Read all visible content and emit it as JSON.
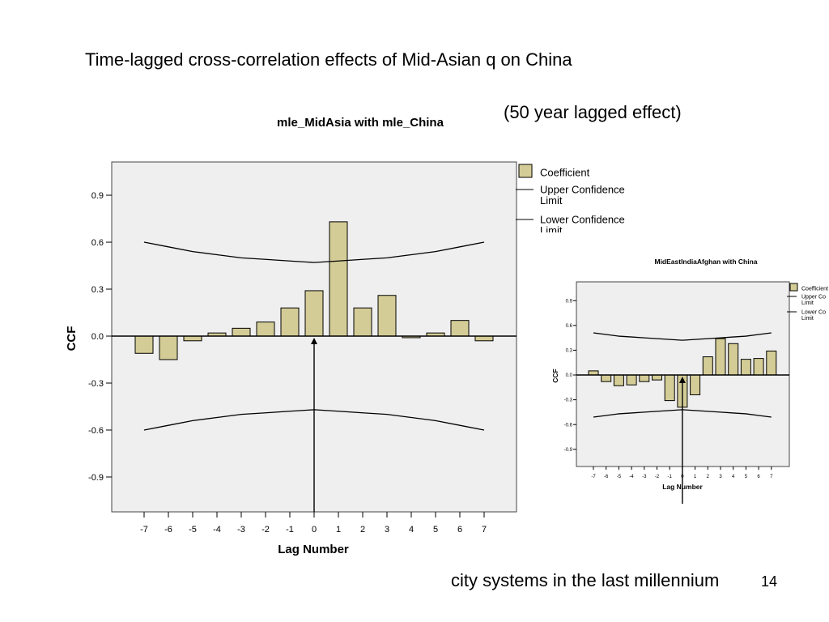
{
  "slide": {
    "title": "Time-lagged cross-correlation effects of Mid-Asian q on China",
    "lag_note": "(50 year lagged effect)",
    "footer": "city systems in the last millennium",
    "page_number": "14"
  },
  "colors": {
    "bar_fill": "#d4cc96",
    "plot_bg": "#efefef",
    "line": "#000000"
  },
  "chart_data": [
    {
      "type": "bar",
      "title": "mle_MidAsia with mle_China",
      "xlabel": "Lag Number",
      "ylabel": "CCF",
      "categories": [
        "-7",
        "-6",
        "-5",
        "-4",
        "-3",
        "-2",
        "-1",
        "0",
        "1",
        "2",
        "3",
        "4",
        "5",
        "6",
        "7"
      ],
      "series": [
        {
          "name": "Coefficient",
          "values": [
            -0.11,
            -0.15,
            -0.03,
            0.02,
            0.05,
            0.09,
            0.18,
            0.29,
            0.73,
            0.18,
            0.26,
            -0.01,
            0.02,
            0.1,
            -0.03
          ]
        },
        {
          "name": "Upper Confidence Limit",
          "values": [
            0.6,
            0.57,
            0.54,
            0.52,
            0.5,
            0.49,
            0.48,
            0.47,
            0.48,
            0.49,
            0.5,
            0.52,
            0.54,
            0.57,
            0.6
          ]
        },
        {
          "name": "Lower Confidence Limit",
          "values": [
            -0.6,
            -0.57,
            -0.54,
            -0.52,
            -0.5,
            -0.49,
            -0.48,
            -0.47,
            -0.48,
            -0.49,
            -0.5,
            -0.52,
            -0.54,
            -0.57,
            -0.6
          ]
        }
      ],
      "legend": [
        "Coefficient",
        "Upper Confidence Limit",
        "Lower Confidence Limit"
      ],
      "y_ticks": [
        "0.9",
        "0.6",
        "0.3",
        "0.0",
        "-0.3",
        "-0.6",
        "-0.9"
      ],
      "ylim": [
        -1.1,
        1.1
      ],
      "grid": false,
      "legend_position": "right",
      "annotation": "arrow pointing up to lag 0"
    },
    {
      "type": "bar",
      "title": "MidEastIndiaAfghan with China",
      "xlabel": "Lag Number",
      "ylabel": "CCF",
      "categories": [
        "-7",
        "-6",
        "-5",
        "-4",
        "-3",
        "-2",
        "-1",
        "0",
        "1",
        "2",
        "3",
        "4",
        "5",
        "6",
        "7"
      ],
      "series": [
        {
          "name": "Coefficient",
          "values": [
            0.05,
            -0.08,
            -0.13,
            -0.12,
            -0.08,
            -0.06,
            -0.31,
            -0.39,
            -0.24,
            0.22,
            0.44,
            0.38,
            0.19,
            0.2,
            0.29
          ]
        },
        {
          "name": "Upper Confidence Limit",
          "values": [
            0.51,
            0.49,
            0.47,
            0.46,
            0.45,
            0.44,
            0.43,
            0.42,
            0.43,
            0.44,
            0.45,
            0.46,
            0.47,
            0.49,
            0.51
          ]
        },
        {
          "name": "Lower Confidence Limit",
          "values": [
            -0.51,
            -0.49,
            -0.47,
            -0.46,
            -0.45,
            -0.44,
            -0.43,
            -0.42,
            -0.43,
            -0.44,
            -0.45,
            -0.46,
            -0.47,
            -0.49,
            -0.51
          ]
        }
      ],
      "legend": [
        "Coefficient",
        "Upper Co Limit",
        "Lower Co Limit"
      ],
      "y_ticks": [
        "0.9",
        "0.6",
        "0.3",
        "0.0",
        "-0.3",
        "-0.6",
        "-0.9"
      ],
      "ylim": [
        -1.1,
        1.1
      ],
      "grid": false,
      "legend_position": "right",
      "annotation": "arrow pointing up to lag 0"
    }
  ]
}
